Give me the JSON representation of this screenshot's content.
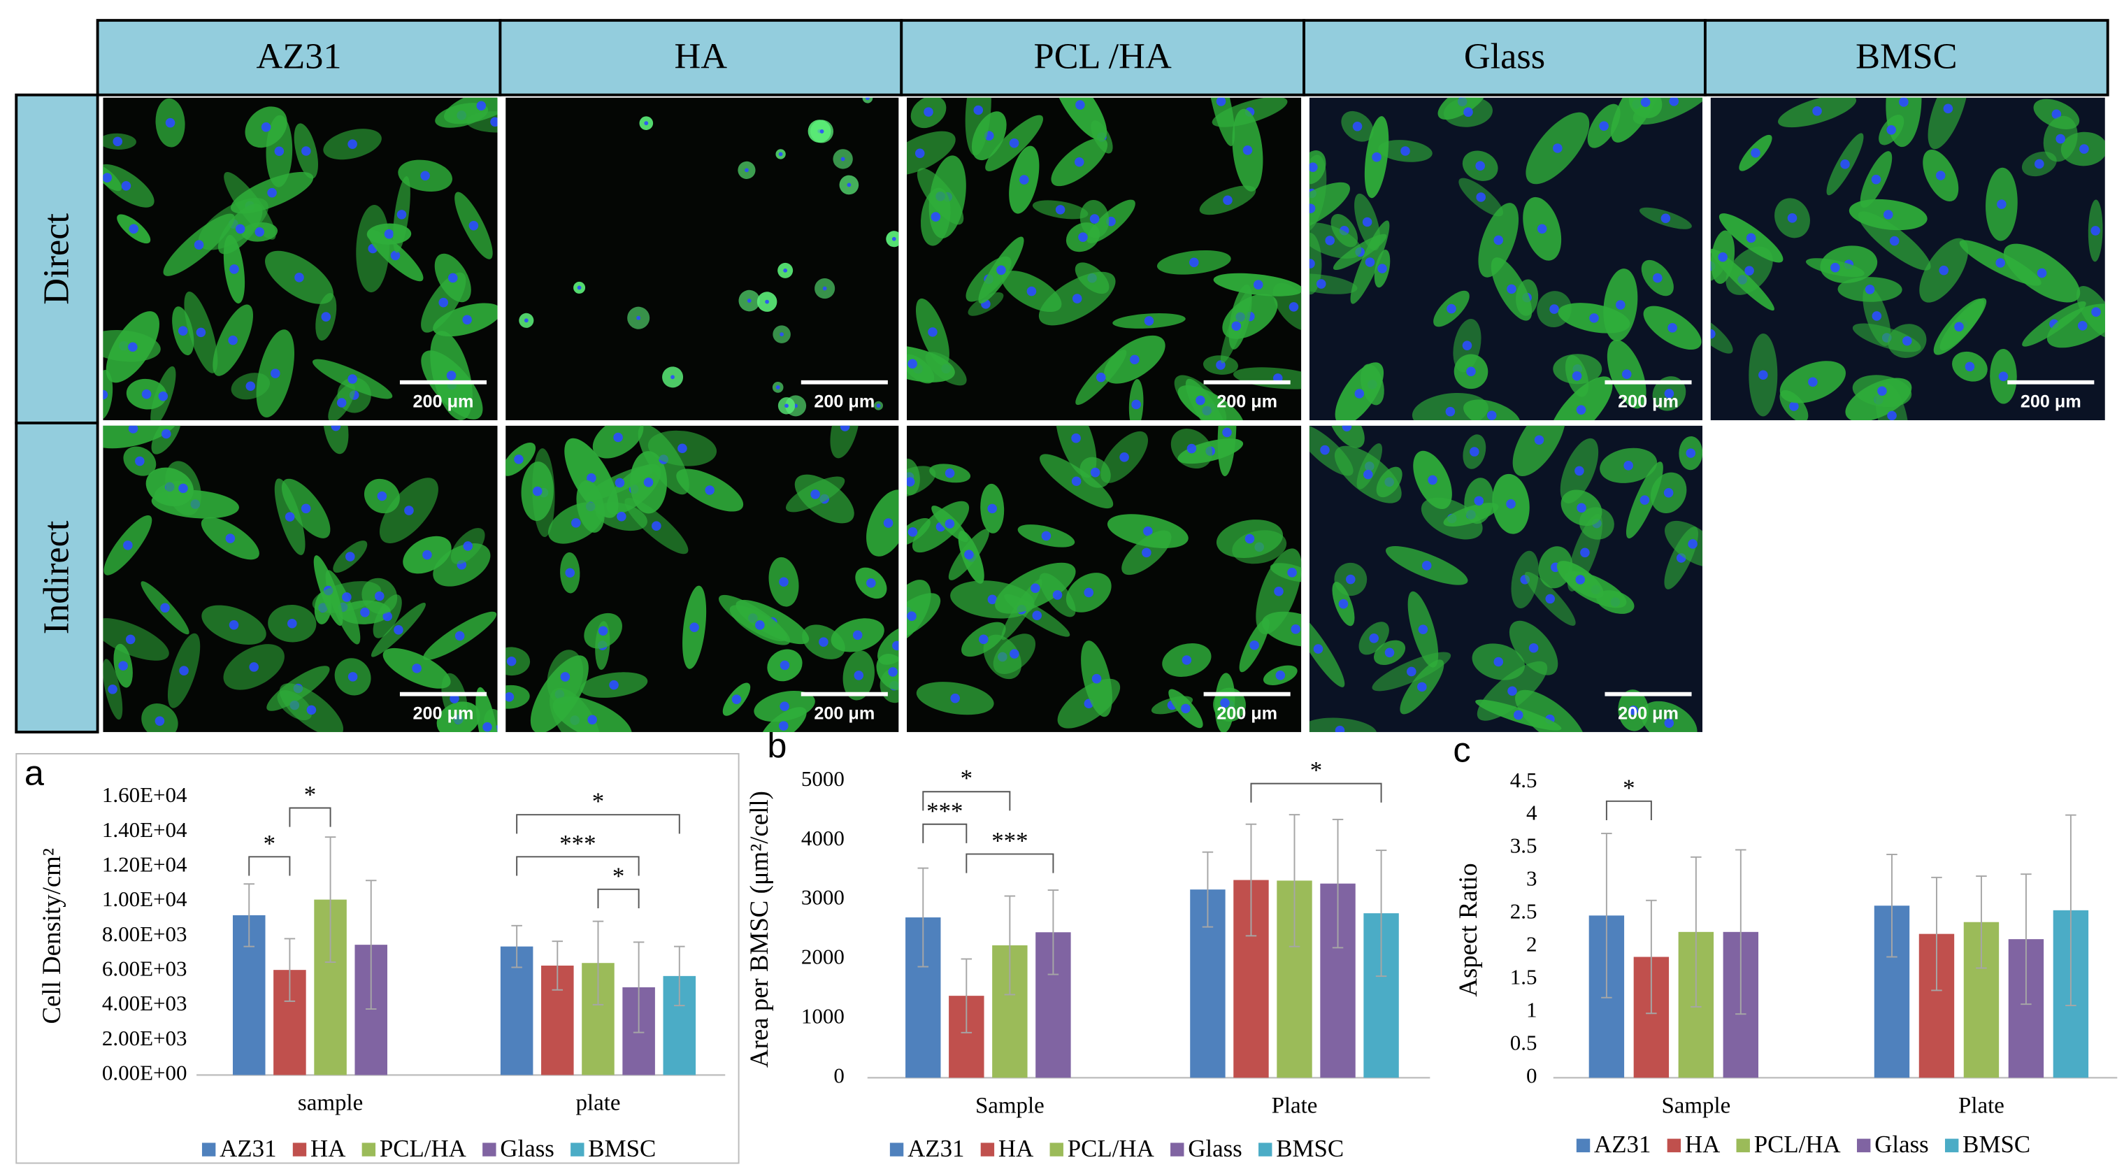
{
  "header": {
    "columns": [
      "AZ31",
      "HA",
      "PCL /HA",
      "Glass",
      "BMSC"
    ],
    "rows": [
      "Direct",
      "Indirect"
    ]
  },
  "scale_bar": "200 μm",
  "chart_data": [
    {
      "type": "bar",
      "label": "a",
      "y_label": "Cell Density/cm²",
      "categories": [
        "sample",
        "plate"
      ],
      "ylim": [
        0,
        16000
      ],
      "yticks": [
        {
          "value": 0,
          "label": "0.00E+00"
        },
        {
          "value": 2000,
          "label": "2.00E+03"
        },
        {
          "value": 4000,
          "label": "4.00E+03"
        },
        {
          "value": 6000,
          "label": "6.00E+03"
        },
        {
          "value": 8000,
          "label": "8.00E+03"
        },
        {
          "value": 10000,
          "label": "1.00E+04"
        },
        {
          "value": 12000,
          "label": "1.20E+04"
        },
        {
          "value": 14000,
          "label": "1.40E+04"
        },
        {
          "value": 16000,
          "label": "1.60E+04"
        }
      ],
      "series": [
        {
          "name": "AZ31",
          "color": "#4f81bd",
          "values": [
            9200,
            7400
          ],
          "errors": [
            1800,
            1200
          ]
        },
        {
          "name": "HA",
          "color": "#c0504d",
          "values": [
            6050,
            6300
          ],
          "errors": [
            1800,
            1400
          ]
        },
        {
          "name": "PCL/HA",
          "color": "#9bbb59",
          "values": [
            10100,
            6450
          ],
          "errors": [
            3600,
            2400
          ]
        },
        {
          "name": "Glass",
          "color": "#8064a2",
          "values": [
            7500,
            5050
          ],
          "errors": [
            3700,
            2600
          ]
        },
        {
          "name": "BMSC",
          "color": "#4bacc6",
          "values": [
            null,
            5700
          ],
          "errors": [
            null,
            1700
          ]
        }
      ],
      "annotations": [
        "*",
        "*",
        "*",
        "***",
        "*"
      ]
    },
    {
      "type": "bar",
      "label": "b",
      "y_label": "Area per BMSC (μm²/cell)",
      "categories": [
        "Sample",
        "Plate"
      ],
      "ylim": [
        0,
        5000
      ],
      "yticks": [
        0,
        1000,
        2000,
        3000,
        4000,
        5000
      ],
      "series": [
        {
          "name": "AZ31",
          "color": "#4f81bd",
          "values": [
            2700,
            3170
          ],
          "errors": [
            830,
            630
          ]
        },
        {
          "name": "HA",
          "color": "#c0504d",
          "values": [
            1380,
            3330
          ],
          "errors": [
            620,
            940
          ]
        },
        {
          "name": "PCL/HA",
          "color": "#9bbb59",
          "values": [
            2230,
            3320
          ],
          "errors": [
            830,
            1110
          ]
        },
        {
          "name": "Glass",
          "color": "#8064a2",
          "values": [
            2450,
            3270
          ],
          "errors": [
            710,
            1080
          ]
        },
        {
          "name": "BMSC",
          "color": "#4bacc6",
          "values": [
            null,
            2770
          ],
          "errors": [
            null,
            1060
          ]
        }
      ],
      "annotations": [
        "*",
        "***",
        "***",
        "*"
      ]
    },
    {
      "type": "bar",
      "label": "c",
      "y_label": "Aspect Ratio",
      "categories": [
        "Sample",
        "Plate"
      ],
      "ylim": [
        0,
        4.5
      ],
      "yticks": [
        0,
        0.5,
        1,
        1.5,
        2,
        2.5,
        3,
        3.5,
        4,
        4.5
      ],
      "series": [
        {
          "name": "AZ31",
          "color": "#4f81bd",
          "values": [
            2.47,
            2.62
          ],
          "errors": [
            1.25,
            0.78
          ]
        },
        {
          "name": "HA",
          "color": "#c0504d",
          "values": [
            1.84,
            2.19
          ],
          "errors": [
            0.86,
            0.86
          ]
        },
        {
          "name": "PCL/HA",
          "color": "#9bbb59",
          "values": [
            2.22,
            2.37
          ],
          "errors": [
            1.14,
            0.7
          ]
        },
        {
          "name": "Glass",
          "color": "#8064a2",
          "values": [
            2.22,
            2.11
          ],
          "errors": [
            1.25,
            0.99
          ]
        },
        {
          "name": "BMSC",
          "color": "#4bacc6",
          "values": [
            null,
            2.55
          ],
          "errors": [
            null,
            1.45
          ]
        }
      ],
      "annotations": [
        "*"
      ]
    }
  ]
}
